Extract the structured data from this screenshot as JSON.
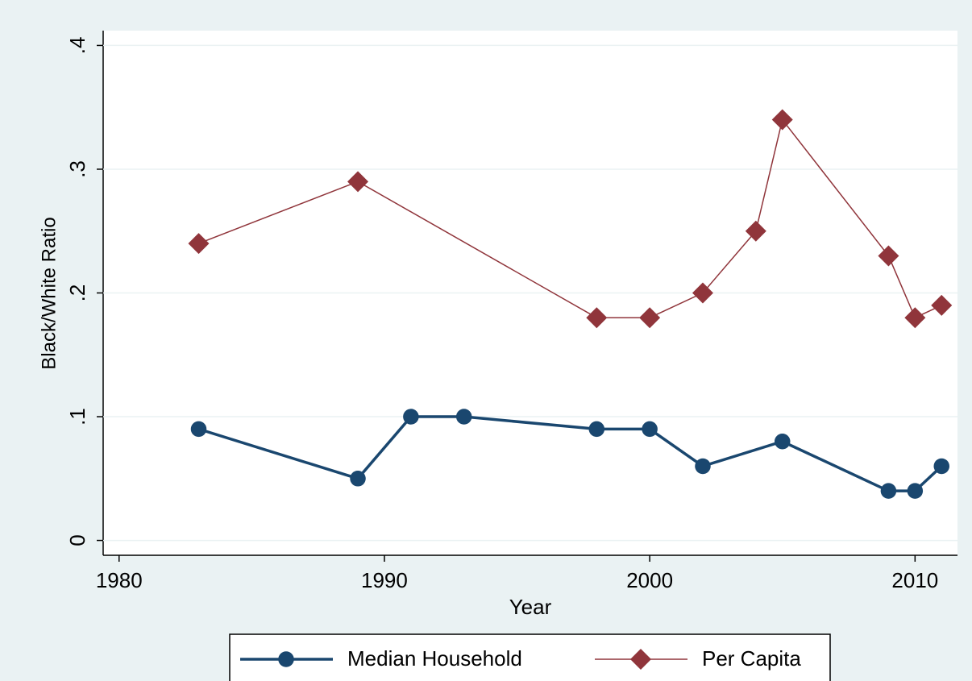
{
  "chart_data": {
    "type": "line",
    "x_label": "Year",
    "y_label": "Black/White Ratio",
    "xlim": [
      1979.4,
      2011.6
    ],
    "ylim": [
      -0.012,
      0.412
    ],
    "xticks": [
      1980,
      1990,
      2000,
      2010
    ],
    "yticks": [
      0,
      {
        "value": 0.1,
        "label": ".1"
      },
      {
        "value": 0.2,
        "label": ".2"
      },
      {
        "value": 0.3,
        "label": ".3"
      },
      {
        "value": 0.4,
        "label": ".4"
      }
    ],
    "grid": true,
    "series": [
      {
        "name": "Median Household",
        "color": "#1a476f",
        "marker": "circle",
        "x": [
          1983,
          1989,
          1991,
          1993,
          1998,
          2000,
          2002,
          2005,
          2009,
          2010,
          2011
        ],
        "values": [
          0.09,
          0.05,
          0.1,
          0.1,
          0.09,
          0.09,
          0.06,
          0.08,
          0.04,
          0.04,
          0.06
        ]
      },
      {
        "name": "Per Capita",
        "color": "#90353b",
        "marker": "diamond",
        "x": [
          1983,
          1989,
          1998,
          2000,
          2002,
          2004,
          2005,
          2009,
          2010,
          2011
        ],
        "values": [
          0.24,
          0.29,
          0.18,
          0.18,
          0.2,
          0.25,
          0.34,
          0.23,
          0.18,
          0.19
        ]
      }
    ]
  }
}
